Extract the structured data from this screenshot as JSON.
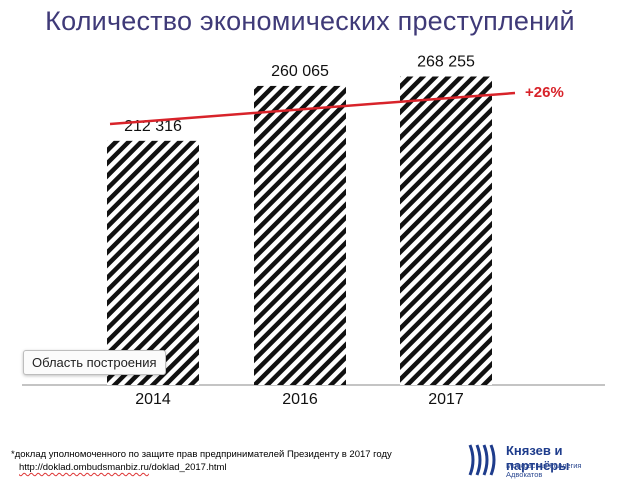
{
  "title": "Количество экономических преступлений",
  "chart_data": {
    "type": "bar",
    "categories": [
      "2014",
      "2016",
      "2017"
    ],
    "values": [
      212316,
      260065,
      268255
    ],
    "data_labels": [
      "212 316",
      "260 065",
      "268 255"
    ],
    "ylim": [
      0,
      300000
    ],
    "grid": false,
    "fill": "diagonal-hatch",
    "trend_annotation": "+26%",
    "trend_color": "#d8232a"
  },
  "tooltip": "Область построения",
  "footnote": {
    "text": "*доклад уполномоченного по защите прав предпринимателей Президенту в 2017 году",
    "url_host": "http://doklad.ombudsmanbiz.ru",
    "url_path": "/doklad_2017.html"
  },
  "logo": {
    "name": "Князев и партнёры",
    "subtitle": "Московская Коллегия Адвокатов",
    "accent": "#1e3c8c"
  }
}
